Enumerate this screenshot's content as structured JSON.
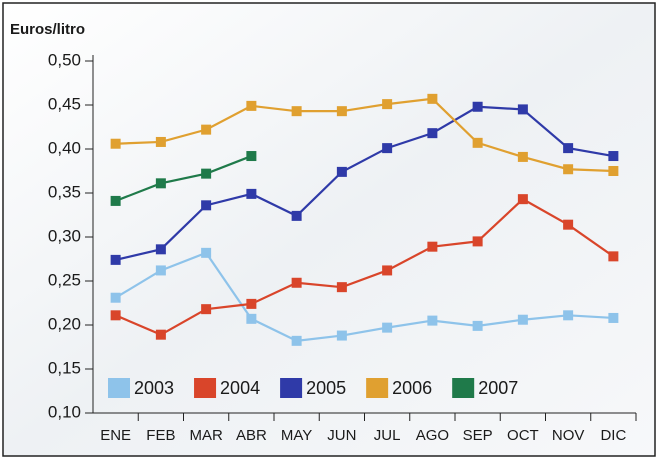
{
  "chart_data": {
    "type": "line",
    "y_label": "Euros/litro",
    "categories": [
      "ENE",
      "FEB",
      "MAR",
      "ABR",
      "MAY",
      "JUN",
      "JUL",
      "AGO",
      "SEP",
      "OCT",
      "NOV",
      "DIC"
    ],
    "series": [
      {
        "name": "2003",
        "color": "#8ec3ea",
        "values": [
          0.231,
          0.262,
          0.282,
          0.207,
          0.182,
          0.188,
          0.197,
          0.205,
          0.199,
          0.206,
          0.211,
          0.208
        ]
      },
      {
        "name": "2004",
        "color": "#d9452a",
        "values": [
          0.211,
          0.189,
          0.218,
          0.224,
          0.248,
          0.243,
          0.262,
          0.289,
          0.295,
          0.343,
          0.314,
          0.278
        ]
      },
      {
        "name": "2005",
        "color": "#2f3aa8",
        "values": [
          0.274,
          0.286,
          0.336,
          0.349,
          0.324,
          0.374,
          0.401,
          0.418,
          0.448,
          0.445,
          0.401,
          0.392
        ]
      },
      {
        "name": "2006",
        "color": "#e0a030",
        "values": [
          0.406,
          0.408,
          0.422,
          0.449,
          0.443,
          0.443,
          0.451,
          0.457,
          0.407,
          0.391,
          0.377,
          0.375
        ]
      },
      {
        "name": "2007",
        "color": "#1f7a4a",
        "values": [
          0.341,
          0.361,
          0.372,
          0.392,
          null,
          null,
          null,
          null,
          null,
          null,
          null,
          null
        ]
      }
    ],
    "ylim": [
      0.1,
      0.5
    ],
    "yticks": [
      {
        "value": 0.1,
        "label": "0,10"
      },
      {
        "value": 0.15,
        "label": "0,15"
      },
      {
        "value": 0.2,
        "label": "0,20"
      },
      {
        "value": 0.25,
        "label": "0,25"
      },
      {
        "value": 0.3,
        "label": "0,30"
      },
      {
        "value": 0.35,
        "label": "0,35"
      },
      {
        "value": 0.4,
        "label": "0,40"
      },
      {
        "value": 0.45,
        "label": "0,45"
      },
      {
        "value": 0.5,
        "label": "0,50"
      }
    ],
    "grid": false,
    "legend": "bottom-left"
  }
}
